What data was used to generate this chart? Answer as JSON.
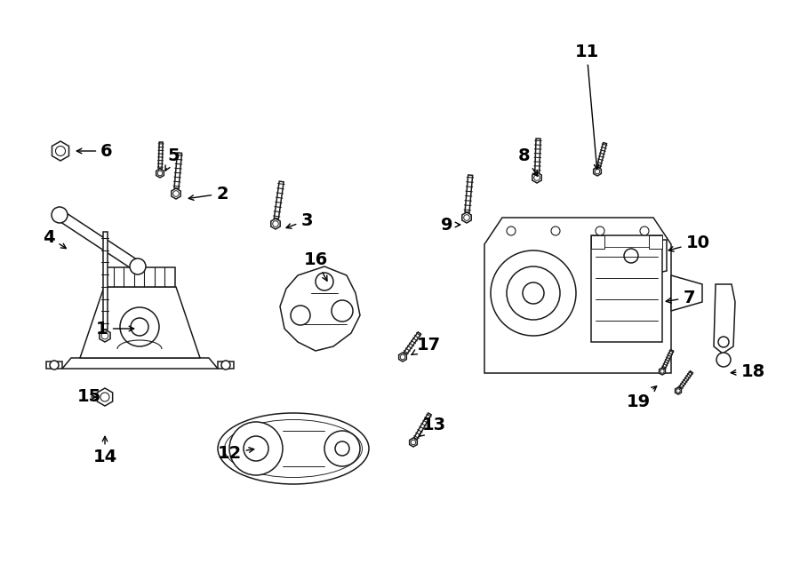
{
  "bg_color": "#ffffff",
  "line_color": "#1a1a1a",
  "fig_width": 9.0,
  "fig_height": 6.62,
  "dpi": 100,
  "lw": 1.1
}
